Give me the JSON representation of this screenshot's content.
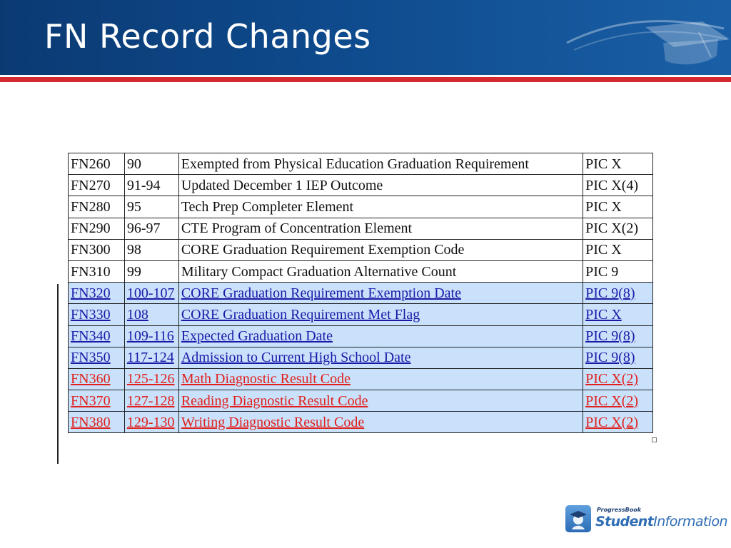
{
  "slide": {
    "title": "FN Record Changes"
  },
  "table": {
    "rows": [
      {
        "code": "FN260",
        "position": "90",
        "description": "Exempted from Physical Education Graduation Requirement",
        "format": "PIC X",
        "style": "plain"
      },
      {
        "code": "FN270",
        "position": "91-94",
        "description": "Updated December 1 IEP Outcome",
        "format": "PIC X(4)",
        "style": "plain"
      },
      {
        "code": "FN280",
        "position": "95",
        "description": "Tech Prep Completer Element",
        "format": "PIC X",
        "style": "plain"
      },
      {
        "code": "FN290",
        "position": "96-97",
        "description": "CTE Program of Concentration Element",
        "format": "PIC X(2)",
        "style": "plain"
      },
      {
        "code": "FN300",
        "position": "98",
        "description": "CORE Graduation Requirement Exemption Code",
        "format": "PIC X",
        "style": "plain"
      },
      {
        "code": "FN310",
        "position": "99",
        "description": "Military Compact Graduation Alternative Count",
        "format": "PIC 9",
        "style": "plain"
      },
      {
        "code": "FN320",
        "position": "100-107",
        "description": "CORE Graduation Requirement Exemption Date",
        "format": "PIC 9(8)",
        "style": "blue"
      },
      {
        "code": "FN330",
        "position": "108",
        "description": "CORE Graduation Requirement Met Flag",
        "format": "PIC X",
        "style": "blue"
      },
      {
        "code": "FN340",
        "position": "109-116",
        "description": "Expected Graduation Date",
        "format": "PIC 9(8)",
        "style": "blue"
      },
      {
        "code": "FN350",
        "position": "117-124",
        "description": "Admission to Current High School Date",
        "format": "PIC 9(8)",
        "style": "blue"
      },
      {
        "code": "FN360",
        "position": "125-126",
        "description": "Math Diagnostic Result Code",
        "format": "PIC X(2)",
        "style": "red"
      },
      {
        "code": "FN370",
        "position": "127-128",
        "description": "Reading Diagnostic Result Code",
        "format": "PIC X(2)",
        "style": "red"
      },
      {
        "code": "FN380",
        "position": "129-130",
        "description": "Writing Diagnostic Result Code",
        "format": "PIC X(2)",
        "style": "red"
      }
    ]
  },
  "logo": {
    "brand_small": "ProgressBook",
    "brand_big_bold": "Student",
    "brand_big_light": "Information",
    "icon": "student-cap-icon"
  },
  "colors": {
    "header_blue": "#0e4a8c",
    "stripe_red": "#d42a2f",
    "row_highlight": "#c9e1fb",
    "link_blue": "#1a1aa8",
    "link_red": "#e0201c"
  }
}
